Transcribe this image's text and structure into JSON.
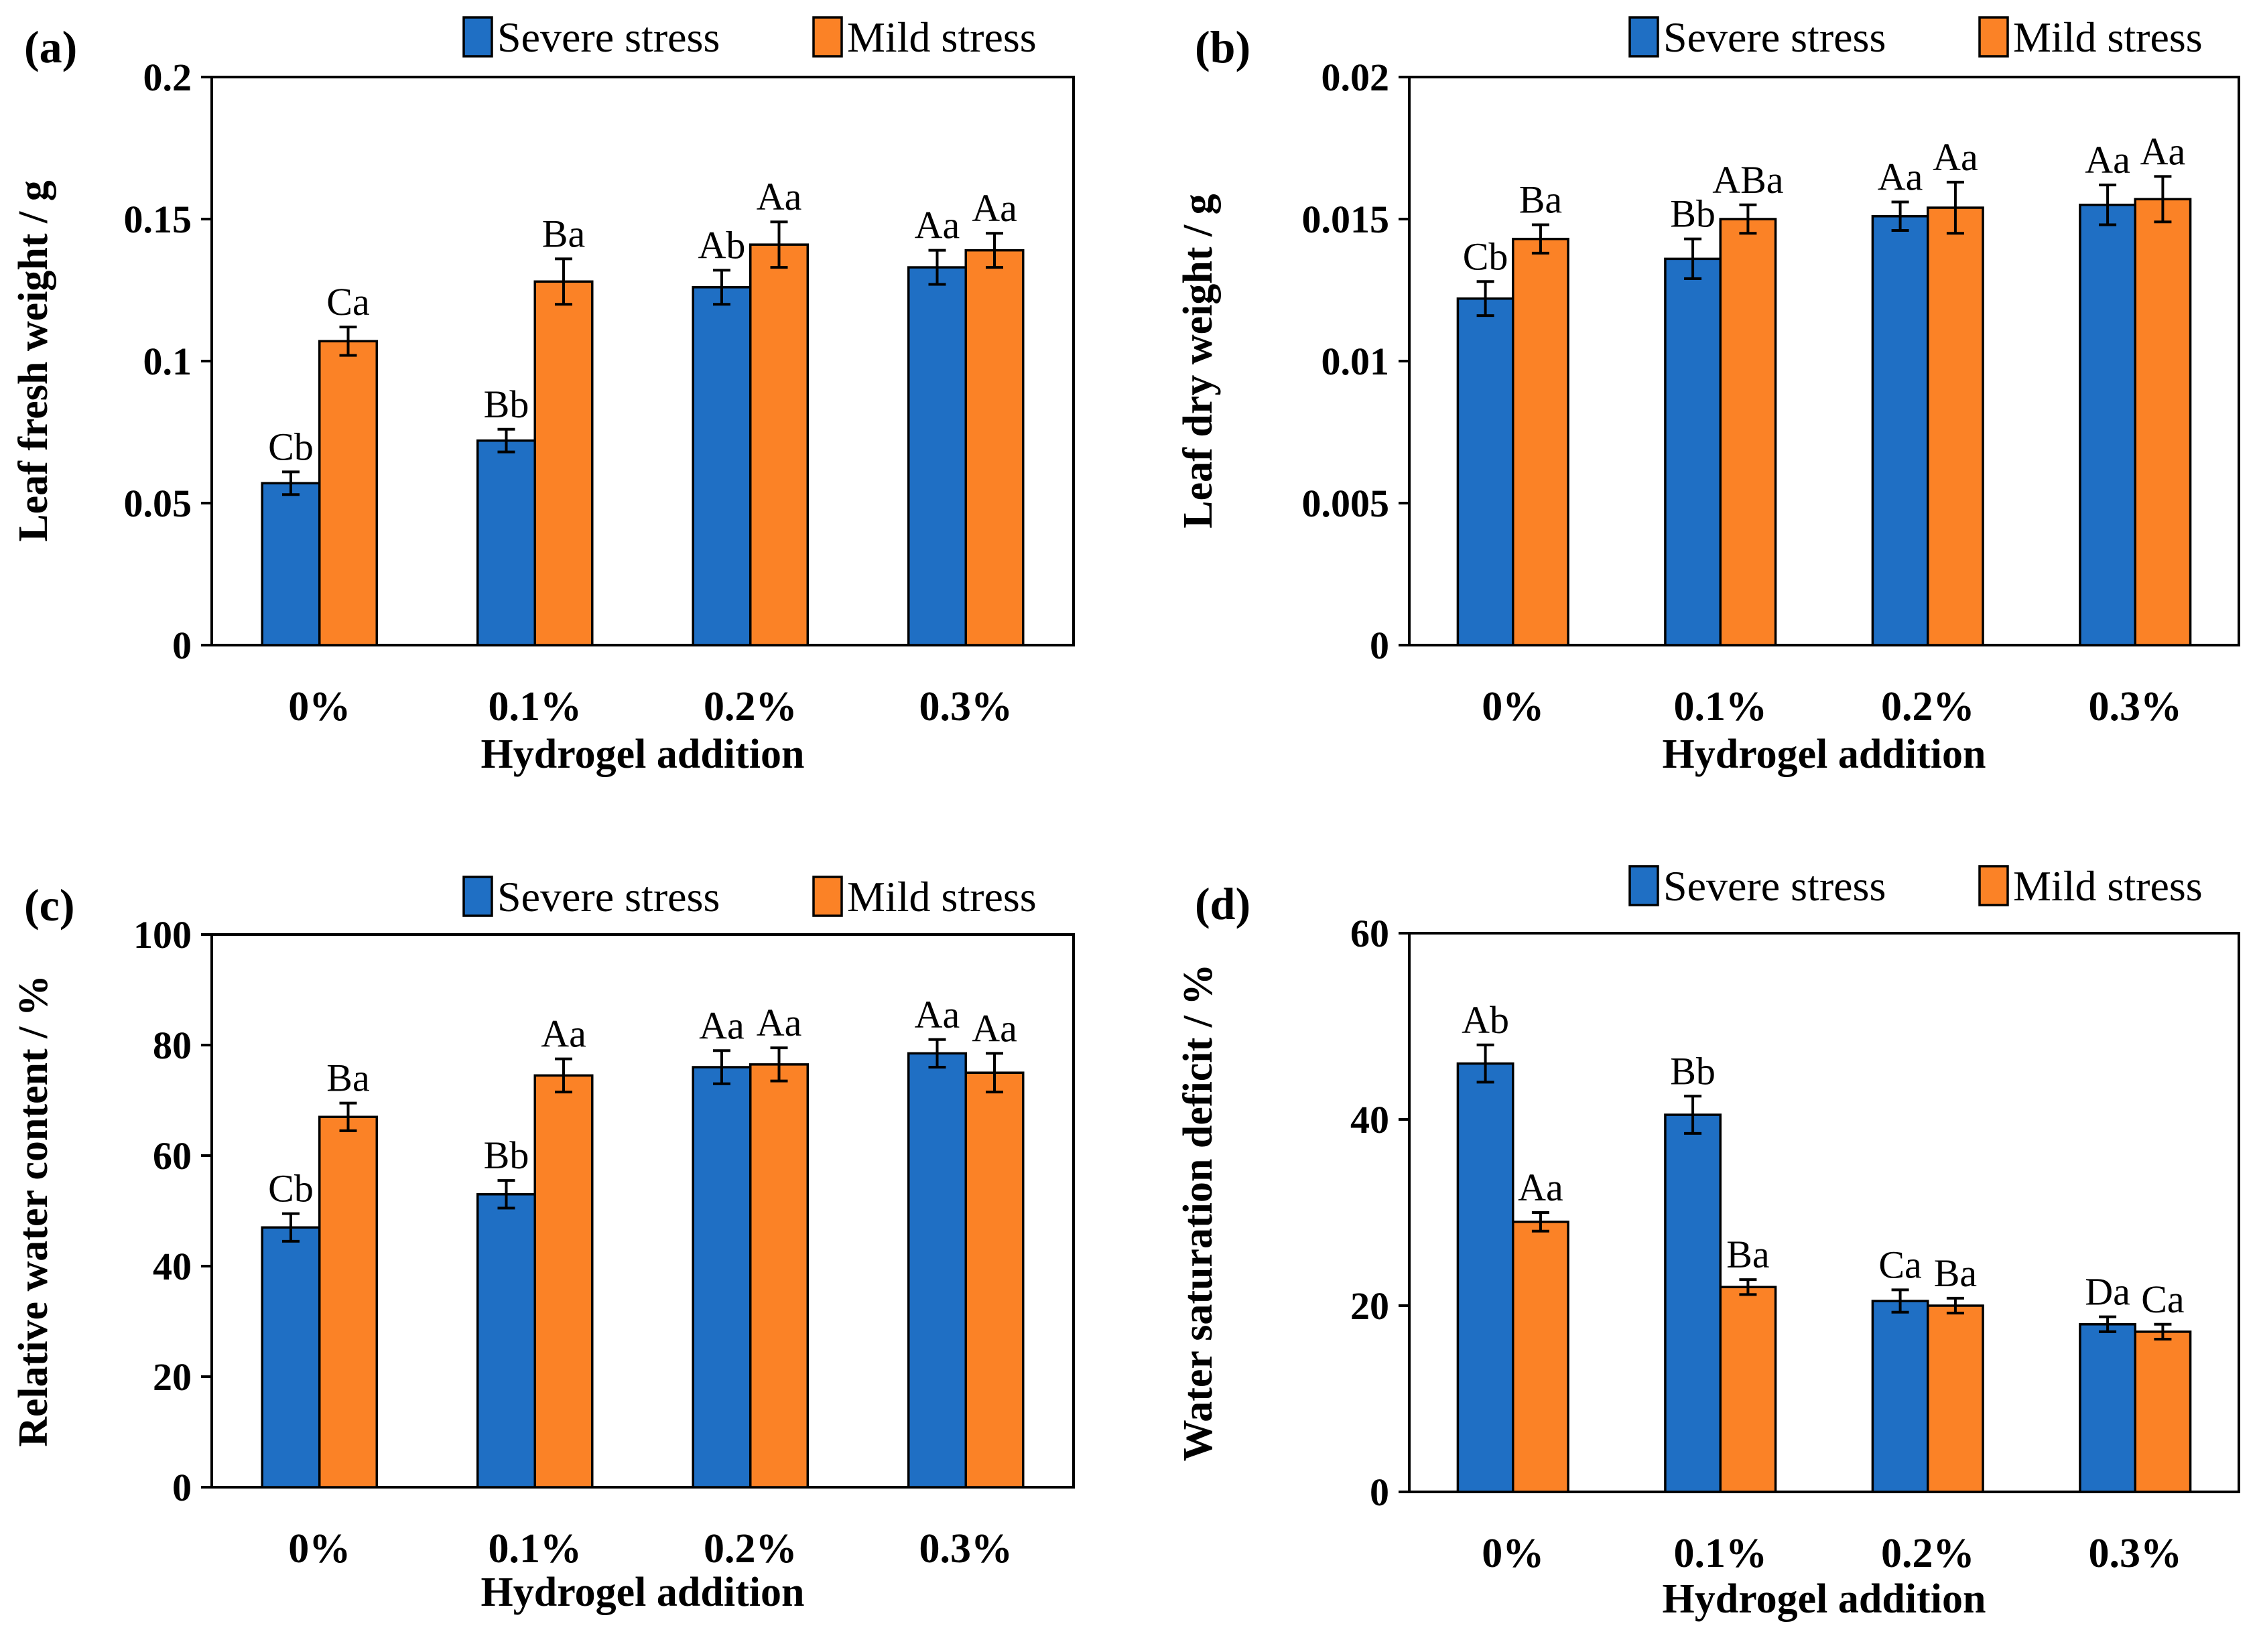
{
  "colors": {
    "severe": "#1f6fc4",
    "mild": "#fb8226",
    "axis": "#000000",
    "background": "#ffffff"
  },
  "chart_data": [
    {
      "type": "bar",
      "panel": "(a)",
      "ylabel": "Leaf fresh weight / g",
      "xlabel": "Hydrogel addition",
      "categories": [
        "0%",
        "0.1%",
        "0.2%",
        "0.3%"
      ],
      "ylim": [
        0,
        0.2
      ],
      "yticks": [
        0,
        0.05,
        0.1,
        0.15,
        0.2
      ],
      "ytick_labels": [
        "0",
        "0.05",
        "0.1",
        "0.15",
        "0.2"
      ],
      "legend": [
        "Severe stress",
        "Mild stress"
      ],
      "series": [
        {
          "name": "Severe stress",
          "values": [
            0.057,
            0.072,
            0.126,
            0.133
          ],
          "errors": [
            0.004,
            0.004,
            0.006,
            0.006
          ],
          "labels": [
            "Cb",
            "Bb",
            "Ab",
            "Aa"
          ]
        },
        {
          "name": "Mild stress",
          "values": [
            0.107,
            0.128,
            0.141,
            0.139
          ],
          "errors": [
            0.005,
            0.008,
            0.008,
            0.006
          ],
          "labels": [
            "Ca",
            "Ba",
            "Aa",
            "Aa"
          ]
        }
      ]
    },
    {
      "type": "bar",
      "panel": "(b)",
      "ylabel": "Leaf dry weight / g",
      "xlabel": "Hydrogel addition",
      "categories": [
        "0%",
        "0.1%",
        "0.2%",
        "0.3%"
      ],
      "ylim": [
        0,
        0.02
      ],
      "yticks": [
        0,
        0.005,
        0.01,
        0.015,
        0.02
      ],
      "ytick_labels": [
        "0",
        "0.005",
        "0.01",
        "0.015",
        "0.02"
      ],
      "legend": [
        "Severe stress",
        "Mild stress"
      ],
      "series": [
        {
          "name": "Severe stress",
          "values": [
            0.0122,
            0.0136,
            0.0151,
            0.0155
          ],
          "errors": [
            0.0006,
            0.0007,
            0.0005,
            0.0007
          ],
          "labels": [
            "Cb",
            "Bb",
            "Aa",
            "Aa"
          ]
        },
        {
          "name": "Mild stress",
          "values": [
            0.0143,
            0.015,
            0.0154,
            0.0157
          ],
          "errors": [
            0.0005,
            0.0005,
            0.0009,
            0.0008
          ],
          "labels": [
            "Ba",
            "ABa",
            "Aa",
            "Aa"
          ]
        }
      ]
    },
    {
      "type": "bar",
      "panel": "(c)",
      "ylabel": "Relative water content / %",
      "xlabel": "Hydrogel addition",
      "categories": [
        "0%",
        "0.1%",
        "0.2%",
        "0.3%"
      ],
      "ylim": [
        0,
        100
      ],
      "yticks": [
        0,
        20,
        40,
        60,
        80,
        100
      ],
      "ytick_labels": [
        "0",
        "20",
        "40",
        "60",
        "80",
        "100"
      ],
      "legend": [
        "Severe stress",
        "Mild stress"
      ],
      "series": [
        {
          "name": "Severe stress",
          "values": [
            47,
            53,
            76,
            78.5
          ],
          "errors": [
            2.5,
            2.5,
            3,
            2.5
          ],
          "labels": [
            "Cb",
            "Bb",
            "Aa",
            "Aa"
          ]
        },
        {
          "name": "Mild stress",
          "values": [
            67,
            74.5,
            76.5,
            75
          ],
          "errors": [
            2.5,
            3,
            3,
            3.5
          ],
          "labels": [
            "Ba",
            "Aa",
            "Aa",
            "Aa"
          ]
        }
      ]
    },
    {
      "type": "bar",
      "panel": "(d)",
      "ylabel": "Water saturation deficit / %",
      "xlabel": "Hydrogel addition",
      "categories": [
        "0%",
        "0.1%",
        "0.2%",
        "0.3%"
      ],
      "ylim": [
        0,
        60
      ],
      "yticks": [
        0,
        20,
        40,
        60
      ],
      "ytick_labels": [
        "0",
        "20",
        "40",
        "60"
      ],
      "legend": [
        "Severe stress",
        "Mild stress"
      ],
      "series": [
        {
          "name": "Severe stress",
          "values": [
            46,
            40.5,
            20.5,
            18
          ],
          "errors": [
            2,
            2,
            1.2,
            0.8
          ],
          "labels": [
            "Ab",
            "Bb",
            "Ca",
            "Da"
          ]
        },
        {
          "name": "Mild stress",
          "values": [
            29,
            22,
            20,
            17.2
          ],
          "errors": [
            1,
            0.8,
            0.8,
            0.8
          ],
          "labels": [
            "Aa",
            "Ba",
            "Ba",
            "Ca"
          ]
        }
      ]
    }
  ]
}
